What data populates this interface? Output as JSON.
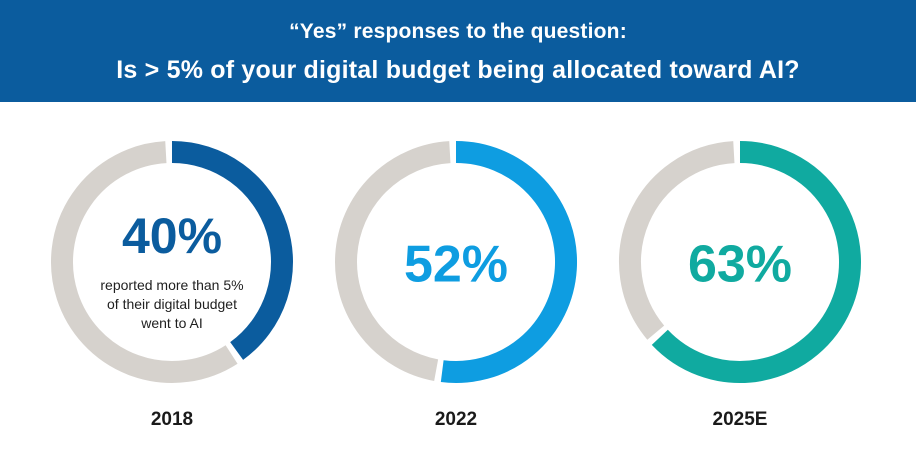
{
  "header": {
    "line1": "“Yes” responses to the question:",
    "line2": "Is > 5% of your digital budget being allocated toward AI?",
    "background": "#0b5c9e"
  },
  "note": {
    "text_line1": "reported more than 5%",
    "text_line2": "of their digital budget",
    "text_line3": "went to AI"
  },
  "chart_data": {
    "type": "donut",
    "track_color": "#d6d2cd",
    "series": [
      {
        "category": "2018",
        "value": 40,
        "label": "40%",
        "color": "#0b5c9e"
      },
      {
        "category": "2022",
        "value": 52,
        "label": "52%",
        "color": "#0e9de1"
      },
      {
        "category": "2025E",
        "value": 63,
        "label": "63%",
        "color": "#10aaa0"
      }
    ]
  }
}
